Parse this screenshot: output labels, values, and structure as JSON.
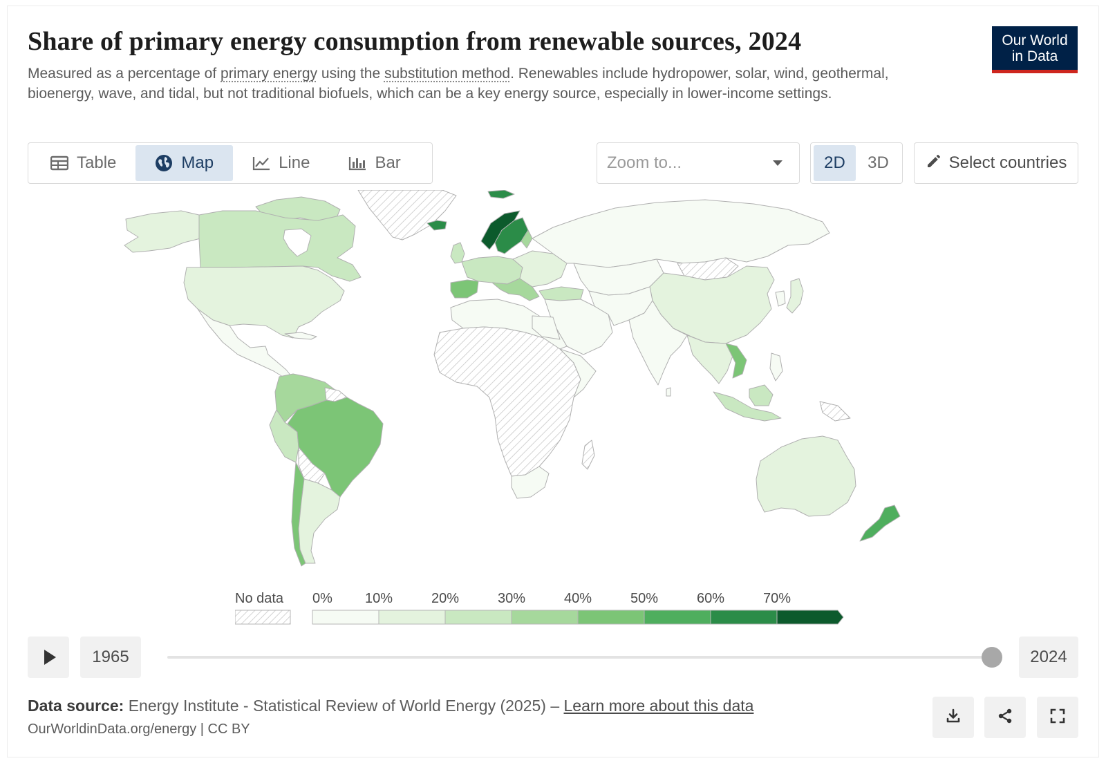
{
  "header": {
    "title": "Share of primary energy consumption from renewable sources, 2024",
    "subtitle_pre": "Measured as a percentage of ",
    "subtitle_term1": "primary energy",
    "subtitle_mid": " using the ",
    "subtitle_term2": "substitution method",
    "subtitle_post": ". Renewables include hydropower, solar, wind, geothermal, bioenergy, wave, and tidal, but not traditional biofuels, which can be a key energy source, especially in lower-income settings.",
    "logo_line1": "Our World",
    "logo_line2": "in Data"
  },
  "tabs": [
    {
      "label": "Table",
      "icon": "table-icon",
      "active": false
    },
    {
      "label": "Map",
      "icon": "globe-icon",
      "active": true
    },
    {
      "label": "Line",
      "icon": "line-chart-icon",
      "active": false
    },
    {
      "label": "Bar",
      "icon": "bar-chart-icon",
      "active": false
    }
  ],
  "controls": {
    "zoom_placeholder": "Zoom to...",
    "dim_2d": "2D",
    "dim_3d": "3D",
    "dim_active": "2D",
    "select_countries": "Select countries"
  },
  "legend": {
    "no_data": "No data",
    "bins": [
      "0%",
      "10%",
      "20%",
      "30%",
      "40%",
      "50%",
      "60%",
      "70%"
    ],
    "colors": [
      "#f6fbf4",
      "#e4f3de",
      "#c9e8c1",
      "#a6d89c",
      "#7cc576",
      "#4fae5e",
      "#2b8c48",
      "#0c5a2c"
    ],
    "no_data_pattern": "hatched-gray"
  },
  "timeline": {
    "start_year": "1965",
    "end_year": "2024",
    "selected_year": 2024,
    "play_icon": "play-icon"
  },
  "footer": {
    "source_label": "Data source:",
    "source_text": "Energy Institute - Statistical Review of World Energy (2025) –",
    "source_link": "Learn more about this data",
    "url_text": "OurWorldinData.org/energy | CC BY",
    "actions": [
      "download-icon",
      "share-icon",
      "fullscreen-icon"
    ]
  }
}
